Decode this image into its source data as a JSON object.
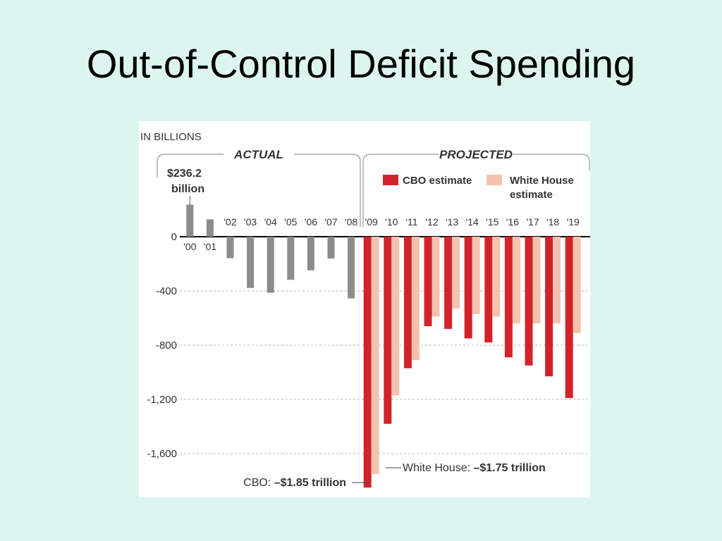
{
  "slide": {
    "title": "Out-of-Control Deficit Spending"
  },
  "chart_data": {
    "type": "bar",
    "unit_label": "IN BILLIONS",
    "sections": {
      "actual": "ACTUAL",
      "projected": "PROJECTED"
    },
    "ylim": [
      -1850,
      236.2
    ],
    "y_ticks": [
      0,
      -400,
      -800,
      -1200,
      -1600
    ],
    "y_tick_labels": [
      "0",
      "-400",
      "-800",
      "-1,200",
      "-1,600"
    ],
    "grid": "dashed horizontal",
    "legend_position": "top-right",
    "categories": [
      "'00",
      "'01",
      "'02",
      "'03",
      "'04",
      "'05",
      "'06",
      "'07",
      "'08",
      "'09",
      "'10",
      "'11",
      "'12",
      "'13",
      "'14",
      "'15",
      "'16",
      "'17",
      "'18",
      "'19"
    ],
    "series": [
      {
        "key": "actual",
        "color": "#8c8c8c",
        "values": [
          236.2,
          128,
          -158,
          -378,
          -413,
          -318,
          -248,
          -161,
          -455,
          null,
          null,
          null,
          null,
          null,
          null,
          null,
          null,
          null,
          null,
          null
        ]
      },
      {
        "key": "cbo",
        "name": "CBO estimate",
        "color": "#d2232a",
        "values": [
          null,
          null,
          null,
          null,
          null,
          null,
          null,
          null,
          null,
          -1850,
          -1380,
          -970,
          -660,
          -680,
          -750,
          -780,
          -890,
          -950,
          -1030,
          -1190
        ]
      },
      {
        "key": "white_house",
        "name": "White House estimate",
        "color": "#f4c2ae",
        "values": [
          null,
          null,
          null,
          null,
          null,
          null,
          null,
          null,
          null,
          -1750,
          -1170,
          -910,
          -590,
          -530,
          -570,
          -590,
          -640,
          -640,
          -640,
          -710
        ]
      }
    ],
    "annotations": {
      "peak_value": "$236.2",
      "peak_unit": "billion",
      "cbo_prefix": "CBO: ",
      "cbo_value": "–$1.85 trillion",
      "wh_prefix": "White House: ",
      "wh_value": "–$1.75 trillion"
    }
  }
}
